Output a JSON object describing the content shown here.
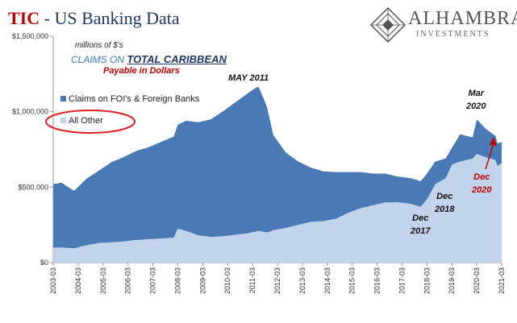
{
  "header": {
    "title_tic": "TIC",
    "title_rest": " - US Banking Data",
    "logo_name": "ALHAMBRA",
    "logo_sub": "INVESTMENTS"
  },
  "annotations": {
    "units": "millions of $'s",
    "subtitle_prefix": "CLAIMS ON ",
    "subtitle_main": "TOTAL CARIBBEAN",
    "subtitle_payable": "Payable in Dollars",
    "may2011": "MAY 2011",
    "mar2020_1": "Mar",
    "mar2020_2": "2020",
    "dec2018_1": "Dec",
    "dec2018_2": "2018",
    "dec2017_1": "Dec",
    "dec2017_2": "2017",
    "dec2020_1": "Dec",
    "dec2020_2": "2020"
  },
  "legend": {
    "fois": "Claims on FOI's & Foreign Banks",
    "other": "All Other"
  },
  "colors": {
    "total": "#4a7ab5",
    "other": "#c2d3ec",
    "axis": "#999999",
    "ellipse": "#e02020",
    "arrow": "#c00000"
  },
  "chart_data": {
    "type": "area",
    "stacked": true,
    "title": "TIC - US Banking Data",
    "ylabel": "millions of $'s",
    "ylim": [
      0,
      1500000
    ],
    "yticks": [
      "$0",
      "$500,000",
      "$1,000,000",
      "$1,500,000"
    ],
    "ytick_values": [
      0,
      500000,
      1000000,
      1500000
    ],
    "x_start": "2003-03",
    "x_end": "2021-03",
    "xticks": [
      "2003-03",
      "2004-03",
      "2005-03",
      "2006-03",
      "2007-03",
      "2008-03",
      "2009-03",
      "2010-03",
      "2011-03",
      "2012-03",
      "2013-03",
      "2014-03",
      "2015-03",
      "2016-03",
      "2017-03",
      "2018-03",
      "2019-03",
      "2020-03",
      "2021-03"
    ],
    "legend_position": "left",
    "series": [
      {
        "name": "All Other",
        "x": [
          2003.17,
          2003.5,
          2004.0,
          2004.5,
          2005.0,
          2005.5,
          2006.0,
          2006.5,
          2007.0,
          2007.5,
          2008.0,
          2008.17,
          2008.5,
          2009.0,
          2009.5,
          2010.0,
          2010.5,
          2011.0,
          2011.4,
          2011.75,
          2012.0,
          2012.5,
          2013.0,
          2013.5,
          2014.0,
          2014.5,
          2015.0,
          2015.5,
          2016.0,
          2016.5,
          2017.0,
          2017.5,
          2017.92,
          2018.17,
          2018.5,
          2018.92,
          2019.17,
          2019.5,
          2020.0,
          2020.17,
          2020.5,
          2020.92,
          2021.0,
          2021.17
        ],
        "values": [
          100000,
          100000,
          95000,
          115000,
          130000,
          135000,
          140000,
          150000,
          155000,
          160000,
          165000,
          225000,
          210000,
          180000,
          170000,
          175000,
          185000,
          195000,
          210000,
          200000,
          215000,
          230000,
          250000,
          270000,
          275000,
          290000,
          330000,
          360000,
          380000,
          400000,
          400000,
          390000,
          370000,
          420000,
          520000,
          560000,
          650000,
          670000,
          690000,
          720000,
          700000,
          680000,
          640000,
          660000
        ]
      },
      {
        "name": "Claims on FOI's & Foreign Banks",
        "x": [
          2003.17,
          2003.5,
          2004.0,
          2004.5,
          2005.0,
          2005.5,
          2006.0,
          2006.5,
          2007.0,
          2007.5,
          2008.0,
          2008.5,
          2009.0,
          2009.5,
          2010.0,
          2010.5,
          2011.0,
          2011.4,
          2011.75,
          2012.0,
          2012.5,
          2013.0,
          2013.5,
          2014.0,
          2014.5,
          2015.0,
          2015.5,
          2016.0,
          2016.5,
          2017.0,
          2017.5,
          2017.92,
          2018.17,
          2018.5,
          2018.92,
          2019.17,
          2019.5,
          2020.0,
          2020.17,
          2020.5,
          2020.92,
          2021.0,
          2021.17
        ],
        "values": [
          420000,
          430000,
          380000,
          440000,
          480000,
          530000,
          560000,
          590000,
          610000,
          640000,
          670000,
          730000,
          750000,
          780000,
          830000,
          880000,
          930000,
          960000,
          830000,
          630000,
          500000,
          420000,
          360000,
          330000,
          310000,
          270000,
          240000,
          210000,
          190000,
          170000,
          170000,
          170000,
          170000,
          150000,
          130000,
          110000,
          180000,
          140000,
          230000,
          190000,
          160000,
          150000,
          140000
        ]
      }
    ]
  }
}
